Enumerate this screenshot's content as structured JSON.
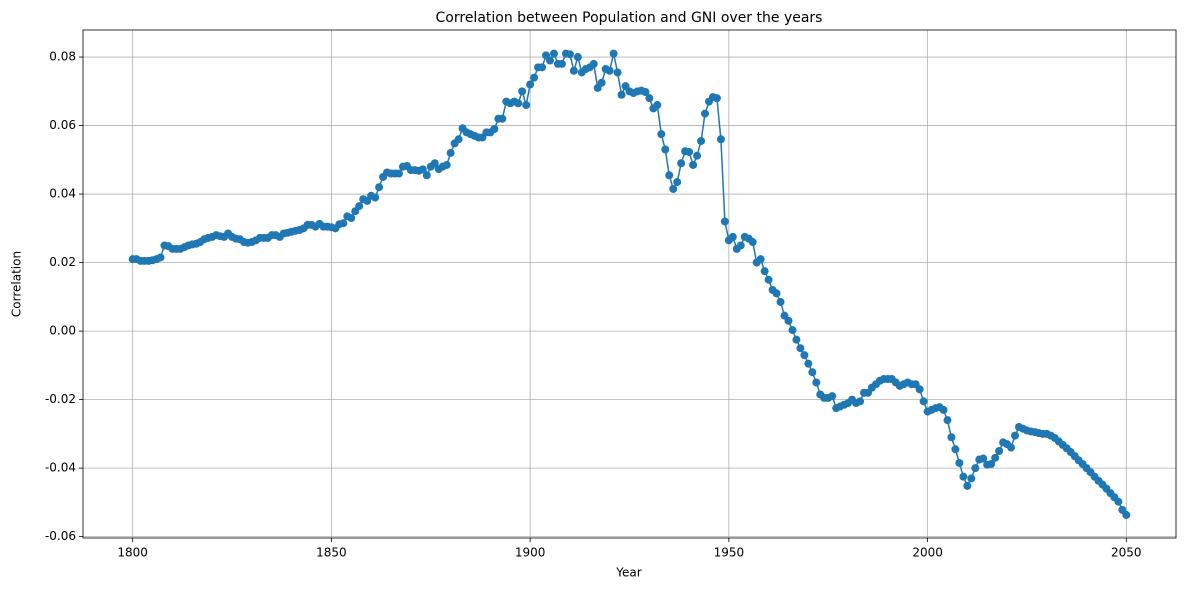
{
  "chart_data": {
    "type": "line",
    "title": "Correlation between Population and GNI over the years",
    "x_label": "Year",
    "y_label": "Correlation",
    "x": [
      1800,
      1801,
      1802,
      1803,
      1804,
      1805,
      1806,
      1807,
      1808,
      1809,
      1810,
      1811,
      1812,
      1813,
      1814,
      1815,
      1816,
      1817,
      1818,
      1819,
      1820,
      1821,
      1822,
      1823,
      1824,
      1825,
      1826,
      1827,
      1828,
      1829,
      1830,
      1831,
      1832,
      1833,
      1834,
      1835,
      1836,
      1837,
      1838,
      1839,
      1840,
      1841,
      1842,
      1843,
      1844,
      1845,
      1846,
      1847,
      1848,
      1849,
      1850,
      1851,
      1852,
      1853,
      1854,
      1855,
      1856,
      1857,
      1858,
      1859,
      1860,
      1861,
      1862,
      1863,
      1864,
      1865,
      1866,
      1867,
      1868,
      1869,
      1870,
      1871,
      1872,
      1873,
      1874,
      1875,
      1876,
      1877,
      1878,
      1879,
      1880,
      1881,
      1882,
      1883,
      1884,
      1885,
      1886,
      1887,
      1888,
      1889,
      1890,
      1891,
      1892,
      1893,
      1894,
      1895,
      1896,
      1897,
      1898,
      1899,
      1900,
      1901,
      1902,
      1903,
      1904,
      1905,
      1906,
      1907,
      1908,
      1909,
      1910,
      1911,
      1912,
      1913,
      1914,
      1915,
      1916,
      1917,
      1918,
      1919,
      1920,
      1921,
      1922,
      1923,
      1924,
      1925,
      1926,
      1927,
      1928,
      1929,
      1930,
      1931,
      1932,
      1933,
      1934,
      1935,
      1936,
      1937,
      1938,
      1939,
      1940,
      1941,
      1942,
      1943,
      1944,
      1945,
      1946,
      1947,
      1948,
      1949,
      1950,
      1951,
      1952,
      1953,
      1954,
      1955,
      1956,
      1957,
      1958,
      1959,
      1960,
      1961,
      1962,
      1963,
      1964,
      1965,
      1966,
      1967,
      1968,
      1969,
      1970,
      1971,
      1972,
      1973,
      1974,
      1975,
      1976,
      1977,
      1978,
      1979,
      1980,
      1981,
      1982,
      1983,
      1984,
      1985,
      1986,
      1987,
      1988,
      1989,
      1990,
      1991,
      1992,
      1993,
      1994,
      1995,
      1996,
      1997,
      1998,
      1999,
      2000,
      2001,
      2002,
      2003,
      2004,
      2005,
      2006,
      2007,
      2008,
      2009,
      2010,
      2011,
      2012,
      2013,
      2014,
      2015,
      2016,
      2017,
      2018,
      2019,
      2020,
      2021,
      2022,
      2023,
      2024,
      2025,
      2026,
      2027,
      2028,
      2029,
      2030,
      2031,
      2032,
      2033,
      2034,
      2035,
      2036,
      2037,
      2038,
      2039,
      2040,
      2041,
      2042,
      2043,
      2044,
      2045,
      2046,
      2047,
      2048,
      2049,
      2050
    ],
    "series": [
      {
        "color": "#1f77b4",
        "values": [
          0.021,
          0.021,
          0.0205,
          0.0205,
          0.0205,
          0.0207,
          0.021,
          0.0215,
          0.025,
          0.0248,
          0.024,
          0.024,
          0.024,
          0.0245,
          0.025,
          0.0253,
          0.0255,
          0.026,
          0.0268,
          0.0272,
          0.0275,
          0.028,
          0.0277,
          0.0275,
          0.0285,
          0.0275,
          0.027,
          0.0268,
          0.026,
          0.0258,
          0.026,
          0.0265,
          0.0272,
          0.0272,
          0.0272,
          0.028,
          0.028,
          0.0275,
          0.0285,
          0.0287,
          0.029,
          0.0293,
          0.0295,
          0.03,
          0.031,
          0.031,
          0.0305,
          0.0313,
          0.0305,
          0.0305,
          0.0303,
          0.03,
          0.0312,
          0.0315,
          0.0335,
          0.033,
          0.035,
          0.0365,
          0.0385,
          0.038,
          0.0395,
          0.039,
          0.042,
          0.045,
          0.0463,
          0.046,
          0.046,
          0.046,
          0.048,
          0.0482,
          0.047,
          0.047,
          0.0468,
          0.0472,
          0.0455,
          0.048,
          0.049,
          0.0473,
          0.048,
          0.0485,
          0.052,
          0.0548,
          0.056,
          0.0592,
          0.058,
          0.0575,
          0.057,
          0.0565,
          0.0565,
          0.058,
          0.058,
          0.059,
          0.062,
          0.062,
          0.067,
          0.0665,
          0.067,
          0.0665,
          0.07,
          0.066,
          0.072,
          0.074,
          0.077,
          0.077,
          0.0805,
          0.079,
          0.081,
          0.078,
          0.078,
          0.081,
          0.0808,
          0.076,
          0.08,
          0.0755,
          0.0765,
          0.077,
          0.078,
          0.071,
          0.0725,
          0.0765,
          0.076,
          0.081,
          0.0755,
          0.069,
          0.0715,
          0.07,
          0.0695,
          0.07,
          0.0702,
          0.0698,
          0.068,
          0.065,
          0.066,
          0.0575,
          0.053,
          0.0455,
          0.0415,
          0.0435,
          0.049,
          0.0525,
          0.0523,
          0.0485,
          0.0512,
          0.0555,
          0.0635,
          0.067,
          0.0683,
          0.068,
          0.056,
          0.032,
          0.0265,
          0.0275,
          0.024,
          0.025,
          0.0275,
          0.027,
          0.026,
          0.02,
          0.021,
          0.0175,
          0.015,
          0.012,
          0.011,
          0.0085,
          0.0045,
          0.003,
          0.0003,
          -0.0025,
          -0.005,
          -0.007,
          -0.0095,
          -0.012,
          -0.015,
          -0.0185,
          -0.0195,
          -0.0195,
          -0.019,
          -0.0225,
          -0.022,
          -0.0215,
          -0.021,
          -0.02,
          -0.021,
          -0.0205,
          -0.018,
          -0.018,
          -0.0165,
          -0.0155,
          -0.0145,
          -0.014,
          -0.014,
          -0.014,
          -0.015,
          -0.016,
          -0.0155,
          -0.015,
          -0.0155,
          -0.0155,
          -0.017,
          -0.0205,
          -0.0235,
          -0.023,
          -0.0225,
          -0.0222,
          -0.023,
          -0.026,
          -0.031,
          -0.0345,
          -0.0385,
          -0.0425,
          -0.0452,
          -0.043,
          -0.04,
          -0.0375,
          -0.0372,
          -0.039,
          -0.0388,
          -0.037,
          -0.035,
          -0.0325,
          -0.033,
          -0.034,
          -0.0305,
          -0.028,
          -0.0285,
          -0.029,
          -0.0293,
          -0.0295,
          -0.0298,
          -0.03,
          -0.03,
          -0.0305,
          -0.0312,
          -0.0322,
          -0.0332,
          -0.0342,
          -0.0353,
          -0.0365,
          -0.0377,
          -0.0388,
          -0.04,
          -0.0412,
          -0.0425,
          -0.0437,
          -0.0448,
          -0.046,
          -0.0473,
          -0.0485,
          -0.0498,
          -0.0522,
          -0.0537
        ]
      }
    ],
    "xlim": [
      1787.5,
      2062.5
    ],
    "xticks": [
      1800,
      1850,
      1900,
      1950,
      2000,
      2050
    ],
    "ylim": [
      -0.0604,
      0.0879
    ],
    "yticks": [
      -0.06,
      -0.04,
      -0.02,
      {
        "value": 0,
        "label": "0.00"
      },
      0.02,
      0.04,
      0.06,
      0.08
    ],
    "grid": true,
    "markers": true
  }
}
